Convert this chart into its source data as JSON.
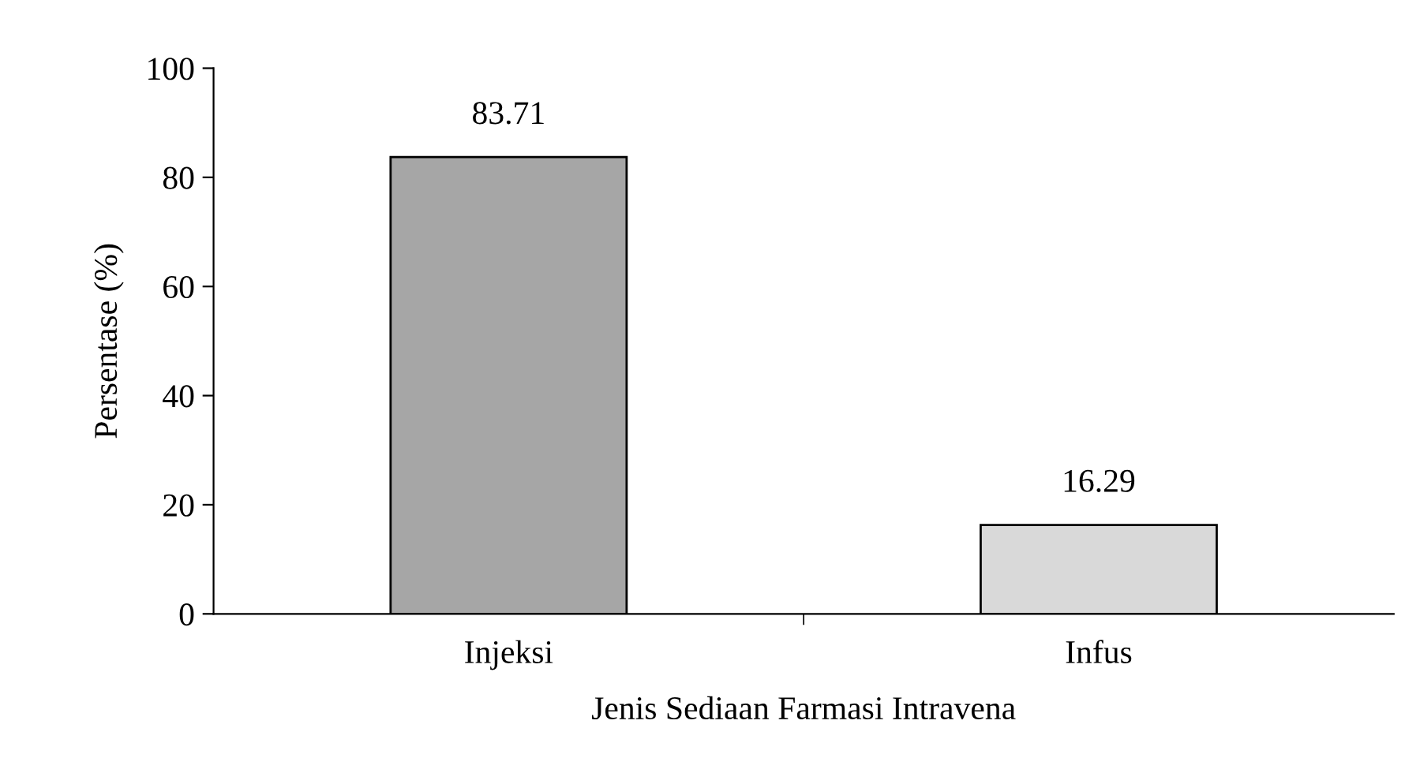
{
  "chart_data": {
    "type": "bar",
    "xlabel": "Jenis Sediaan Farmasi Intravena",
    "ylabel": "Persentase (%)",
    "categories": [
      "Injeksi",
      "Infus"
    ],
    "values": [
      83.71,
      16.29
    ],
    "colors": [
      "#a6a6a6",
      "#d9d9d9"
    ],
    "ylim": [
      0,
      100
    ],
    "yticks": [
      0,
      20,
      40,
      60,
      80,
      100
    ],
    "data_labels": true,
    "grid": false,
    "legend": false
  }
}
